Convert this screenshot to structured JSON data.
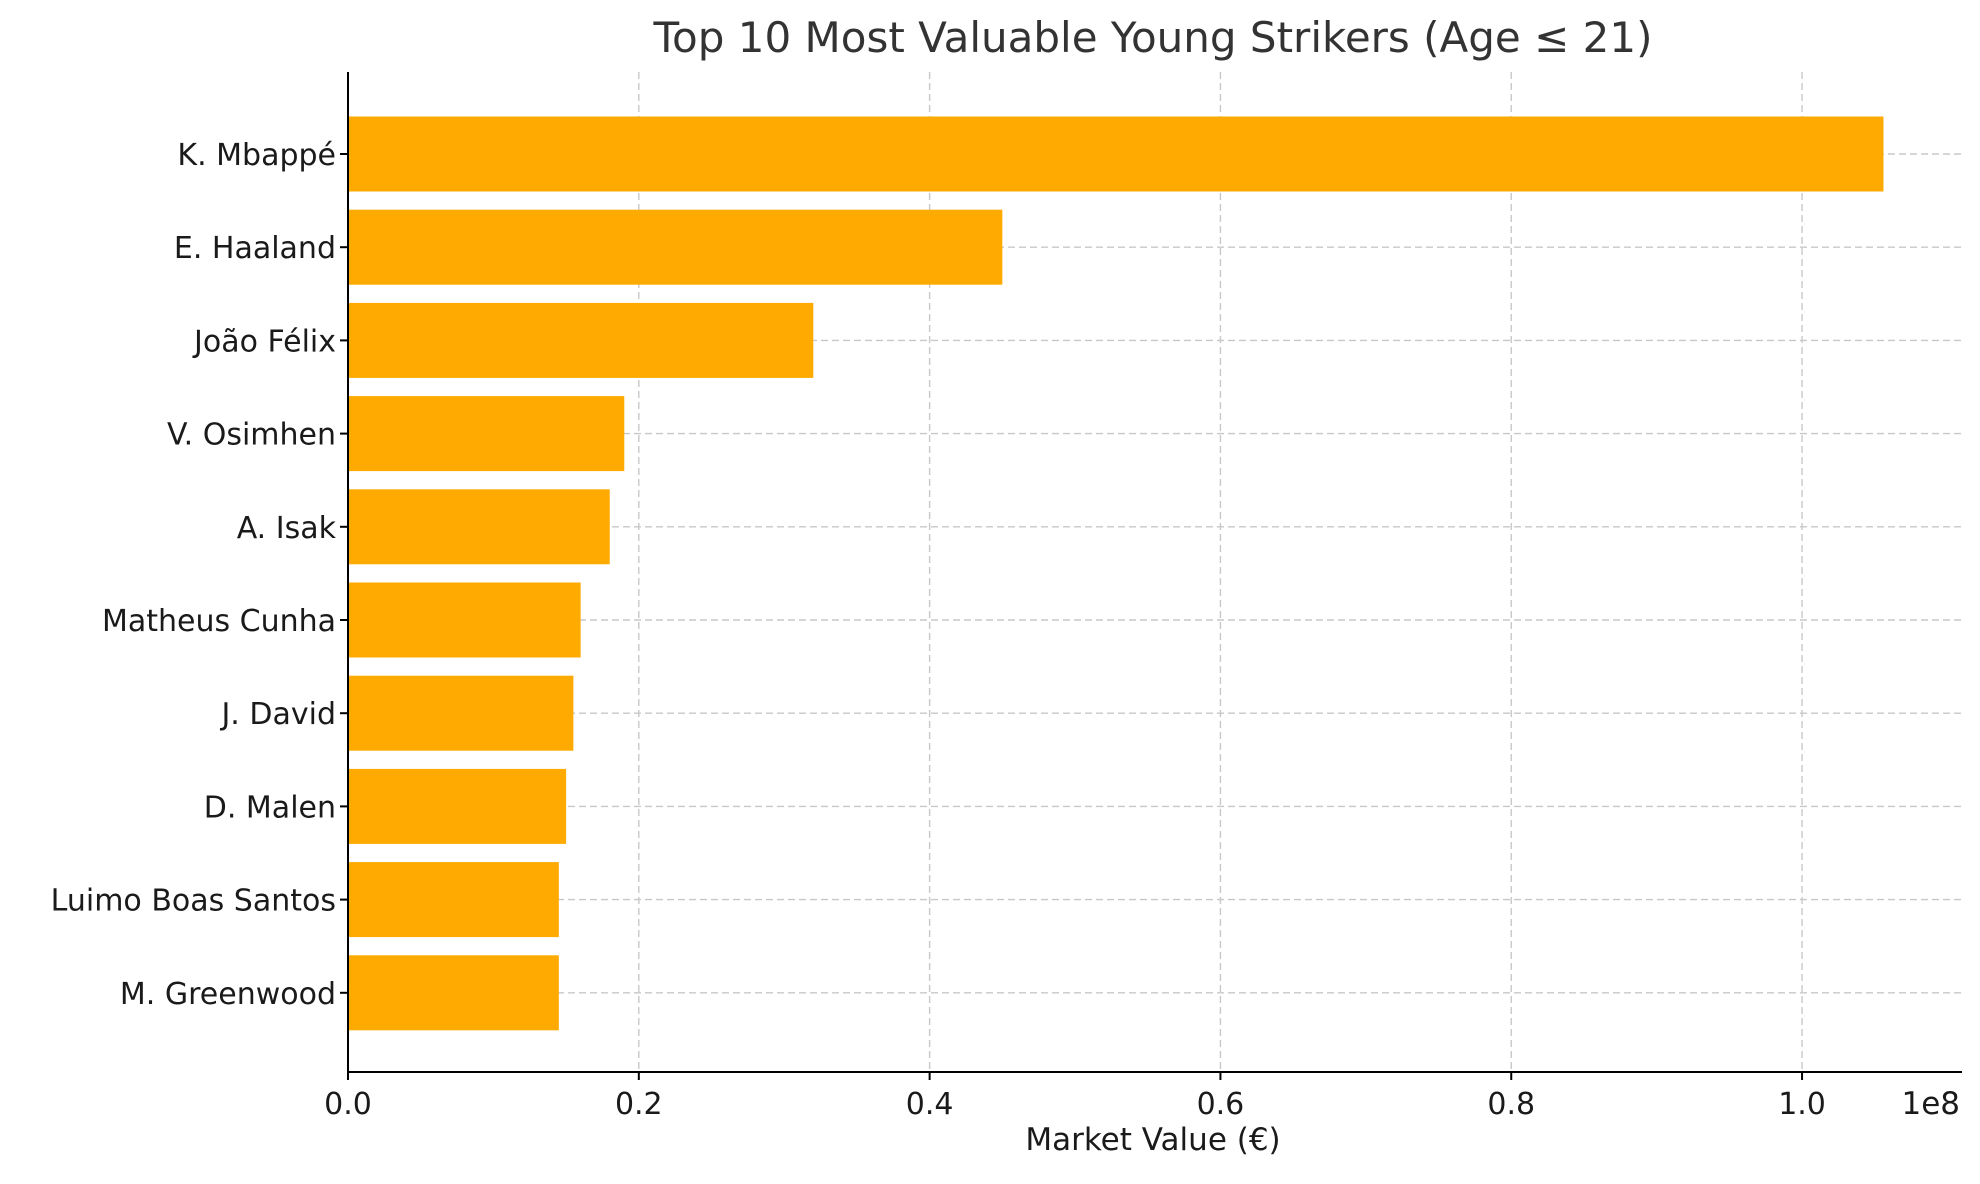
{
  "chart_data": {
    "type": "bar",
    "orientation": "horizontal",
    "title": "Top 10 Most Valuable Young Strikers (Age ≤ 21)",
    "xlabel": "Market Value (€)",
    "ylabel": "",
    "scale_label": "1e8",
    "bar_color": "#FFAA00",
    "grid": true,
    "xlim": [
      0,
      111000000
    ],
    "xticks": [
      0,
      20000000,
      40000000,
      60000000,
      80000000,
      100000000
    ],
    "xtick_labels": [
      "0.0",
      "0.2",
      "0.4",
      "0.6",
      "0.8",
      "1.0"
    ],
    "categories": [
      "K. Mbappé",
      "E. Haaland",
      "João Félix",
      "V. Osimhen",
      "A. Isak",
      "Matheus Cunha",
      "J. David",
      "D. Malen",
      "Luimo Boas Santos",
      "M. Greenwood"
    ],
    "values": [
      105600000,
      45000000,
      32000000,
      19000000,
      18000000,
      16000000,
      15500000,
      15000000,
      14500000,
      14500000
    ]
  }
}
